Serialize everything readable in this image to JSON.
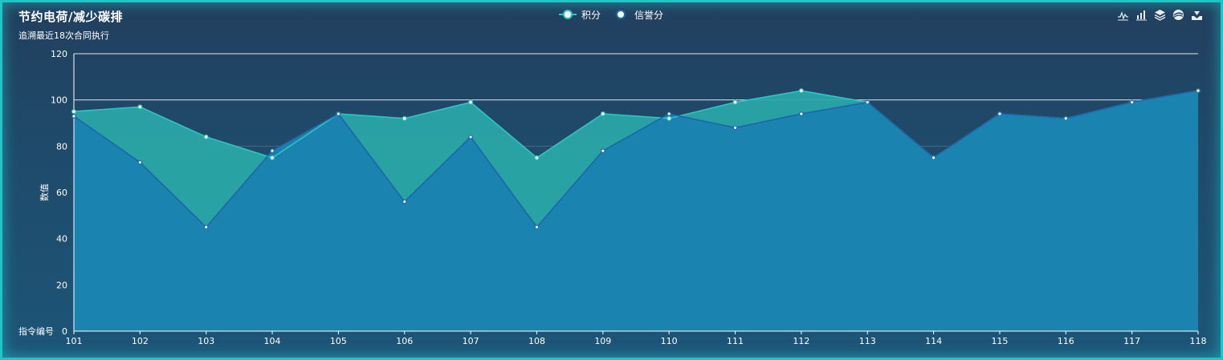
{
  "header": {
    "title": "节约电荷/减少碳排",
    "subtitle": "追溯最近18次合同执行"
  },
  "toolbox": [
    {
      "icon": "line-chart-icon"
    },
    {
      "icon": "bar-chart-icon"
    },
    {
      "icon": "stack-icon"
    },
    {
      "icon": "restore-icon"
    },
    {
      "icon": "download-icon"
    }
  ],
  "colors": {
    "accent": "#1fc6c6",
    "series1_line": "#31c4c4",
    "series1_fill": "#2aa6a8",
    "series2_line": "#1b66ae",
    "series2_fill": "#1a82b0",
    "axis": "#ffffff"
  },
  "chart_data": {
    "type": "area",
    "xlabel": "指令编号",
    "ylabel": "数值",
    "categories": [
      "101",
      "102",
      "103",
      "104",
      "105",
      "106",
      "107",
      "108",
      "109",
      "110",
      "111",
      "112",
      "113",
      "114",
      "115",
      "116",
      "117",
      "118"
    ],
    "ylim": [
      0,
      120
    ],
    "yticks": [
      0,
      20,
      40,
      60,
      80,
      100,
      120
    ],
    "legend_position": "top-center",
    "grid": true,
    "series": [
      {
        "name": "积分",
        "values": [
          95,
          97,
          84,
          75,
          94,
          92,
          99,
          75,
          94,
          92,
          99,
          104,
          99,
          75,
          94,
          92,
          99,
          104
        ]
      },
      {
        "name": "信誉分",
        "values": [
          93,
          73,
          45,
          78,
          94,
          56,
          84,
          45,
          78,
          94,
          88,
          94,
          99,
          75,
          94,
          92,
          99,
          104
        ]
      }
    ]
  }
}
